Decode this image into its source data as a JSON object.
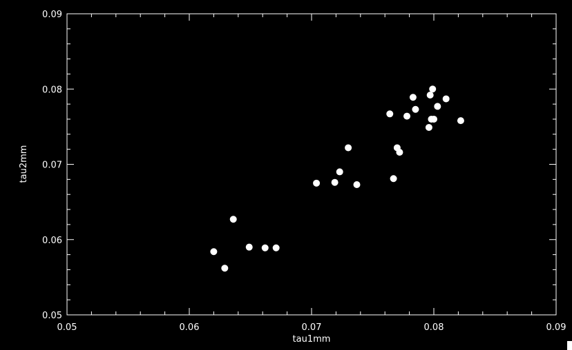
{
  "chart_data": {
    "type": "scatter",
    "title": "",
    "xlabel": "tau1mm",
    "ylabel": "tau2mm",
    "xlim": [
      0.05,
      0.09
    ],
    "ylim": [
      0.05,
      0.09
    ],
    "x_ticks": [
      "0.05",
      "0.06",
      "0.07",
      "0.08",
      "0.09"
    ],
    "y_ticks": [
      "0.05",
      "0.06",
      "0.07",
      "0.08",
      "0.09"
    ],
    "grid": false,
    "legend": "none",
    "colors": {
      "background": "#000000",
      "foreground": "#ffffff",
      "marker": "#ffffff"
    },
    "points": [
      {
        "x": 0.062,
        "y": 0.0584
      },
      {
        "x": 0.0629,
        "y": 0.0562
      },
      {
        "x": 0.0636,
        "y": 0.0627
      },
      {
        "x": 0.0649,
        "y": 0.059
      },
      {
        "x": 0.0662,
        "y": 0.0589
      },
      {
        "x": 0.0671,
        "y": 0.0589
      },
      {
        "x": 0.0704,
        "y": 0.0675
      },
      {
        "x": 0.0719,
        "y": 0.0676
      },
      {
        "x": 0.0723,
        "y": 0.069
      },
      {
        "x": 0.073,
        "y": 0.0722
      },
      {
        "x": 0.0737,
        "y": 0.0673
      },
      {
        "x": 0.0764,
        "y": 0.0767
      },
      {
        "x": 0.0767,
        "y": 0.0681
      },
      {
        "x": 0.077,
        "y": 0.0722
      },
      {
        "x": 0.0772,
        "y": 0.0716
      },
      {
        "x": 0.0778,
        "y": 0.0764
      },
      {
        "x": 0.0783,
        "y": 0.0789
      },
      {
        "x": 0.0785,
        "y": 0.0773
      },
      {
        "x": 0.0796,
        "y": 0.0749
      },
      {
        "x": 0.0797,
        "y": 0.0792
      },
      {
        "x": 0.0798,
        "y": 0.076
      },
      {
        "x": 0.0799,
        "y": 0.08
      },
      {
        "x": 0.08,
        "y": 0.076
      },
      {
        "x": 0.0803,
        "y": 0.0777
      },
      {
        "x": 0.081,
        "y": 0.0787
      },
      {
        "x": 0.0822,
        "y": 0.0758
      }
    ]
  }
}
